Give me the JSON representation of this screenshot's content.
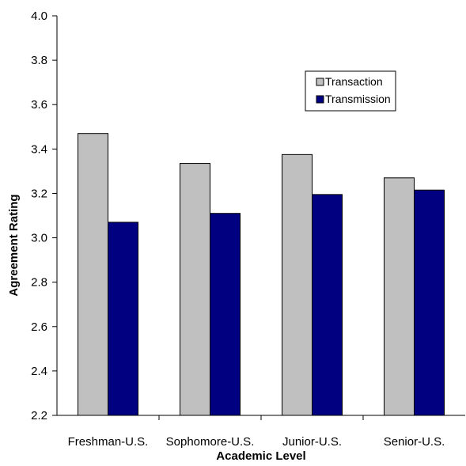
{
  "chart_data": {
    "type": "bar",
    "title": "",
    "xlabel": "Academic Level",
    "ylabel": "Agreement Rating",
    "categories": [
      "Freshman-U.S.",
      "Sophomore-U.S.",
      "Junior-U.S.",
      "Senior-U.S."
    ],
    "series": [
      {
        "name": "Transaction",
        "values": [
          3.47,
          3.335,
          3.375,
          3.27
        ],
        "color": "#c0c0c0"
      },
      {
        "name": "Transmission",
        "values": [
          3.07,
          3.11,
          3.195,
          3.215
        ],
        "color": "#000080"
      }
    ],
    "ylim": [
      2.2,
      4.0
    ],
    "yticks": [
      "2.2",
      "2.4",
      "2.6",
      "2.8",
      "3.0",
      "3.2",
      "3.4",
      "3.6",
      "3.8",
      "4.0"
    ],
    "grid": false,
    "legend_placement": "top-right"
  }
}
